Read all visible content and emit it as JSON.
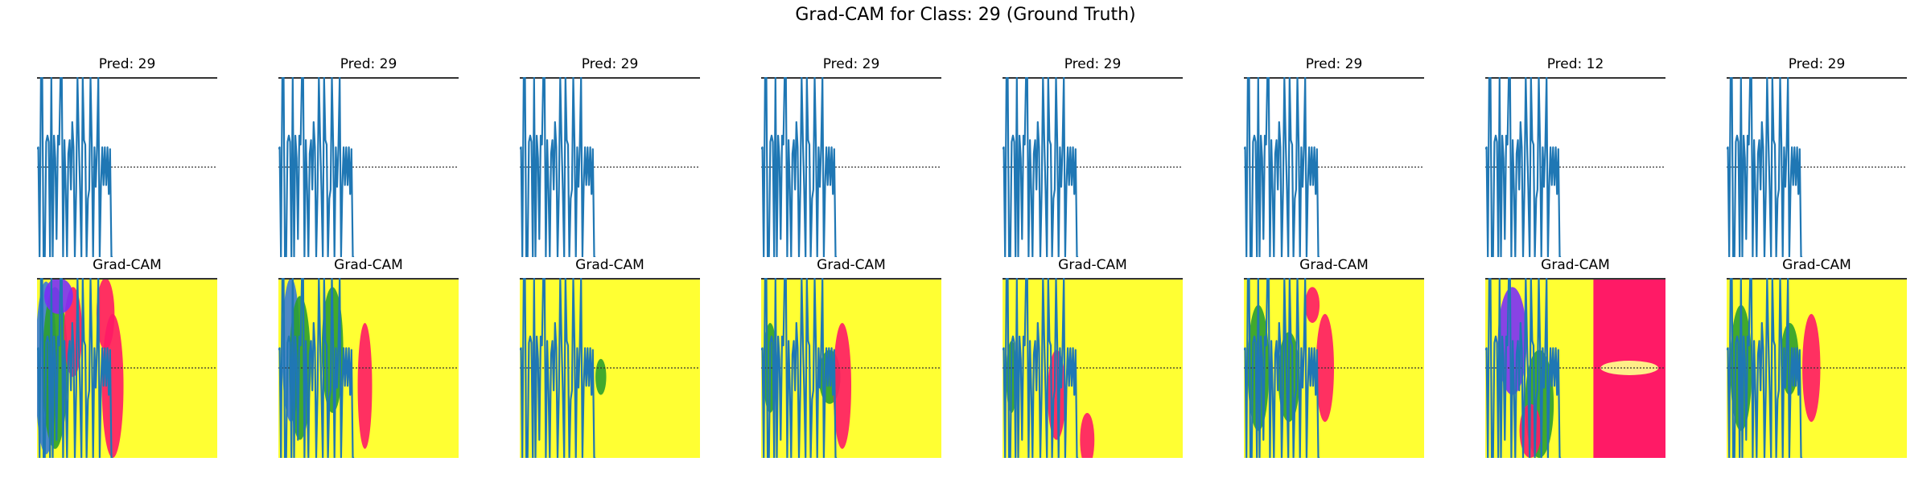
{
  "title": "Grad-CAM for Class: 29 (Ground Truth)",
  "chart_data": {
    "type": "line",
    "title": "Grad-CAM for Class: 29 (Ground Truth)",
    "panel_count": 8,
    "top_row_titles": [
      "Pred: 29",
      "Pred: 29",
      "Pred: 29",
      "Pred: 29",
      "Pred: 29",
      "Pred: 29",
      "Pred: 12",
      "Pred: 29"
    ],
    "bottom_row_titles": [
      "Grad-CAM",
      "Grad-CAM",
      "Grad-CAM",
      "Grad-CAM",
      "Grad-CAM",
      "Grad-CAM",
      "Grad-CAM",
      "Grad-CAM"
    ],
    "axes_visible": false,
    "reference_line": {
      "y": 0,
      "style": "dotted"
    },
    "signal": {
      "x": [
        0,
        1,
        2,
        3,
        4,
        5,
        6,
        7,
        8,
        9,
        10,
        11,
        12,
        13,
        14,
        15,
        16,
        17,
        18,
        19,
        20,
        21,
        22,
        23,
        24,
        25,
        26,
        27,
        28,
        29,
        30,
        31,
        32,
        33,
        34,
        35,
        36,
        37,
        38,
        39,
        40,
        41,
        42,
        43,
        44,
        45,
        46,
        47,
        48,
        49,
        50,
        51,
        52,
        53,
        54,
        55,
        56,
        57,
        58
      ],
      "y": [
        0.2,
        0.22,
        -1,
        1,
        1,
        -1,
        -1,
        0.28,
        0.35,
        0.28,
        -1,
        1,
        -1,
        0.35,
        0.1,
        -0.8,
        0.35,
        0.25,
        1,
        1,
        -1,
        0.3,
        -0.25,
        -1,
        0.15,
        0.3,
        -0.25,
        0.5,
        0.22,
        -1,
        -0.25,
        1,
        0.3,
        -0.25,
        -1,
        1,
        0.3,
        0.25,
        -1,
        -0.35,
        -0.25,
        1,
        0.25,
        -1,
        0.22,
        -0.22,
        0.22,
        1,
        -1,
        -0.2,
        0.22,
        -0.2,
        0.22,
        -0.2,
        0.22,
        -0.3,
        0.2,
        -1,
        -1
      ],
      "color": "#1f77b4"
    },
    "heatmap_colors": {
      "background": "#ffff33",
      "hot": "#ff1a66",
      "mid": "#2ca02c",
      "cool": "#3a7bd5",
      "accent": "#7b2ff7"
    }
  }
}
